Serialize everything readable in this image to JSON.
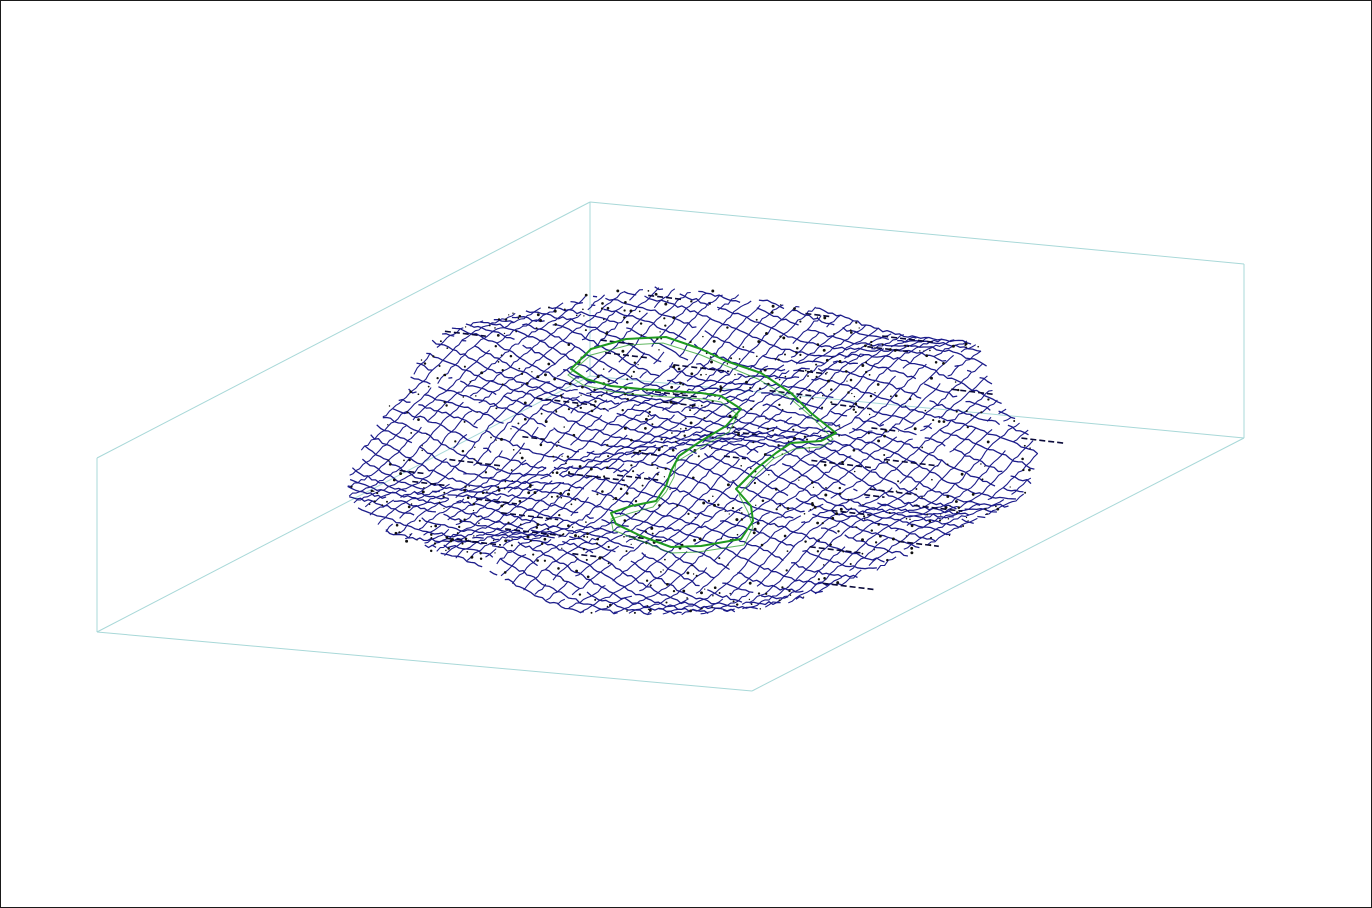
{
  "viewport": {
    "description_label": "",
    "background_color": "#ffffff",
    "border_color": "#1a1a1a"
  },
  "scene": {
    "view": "3d-perspective-wireframe",
    "bounding_box_color": "#a8d8d8",
    "mesh_color": "#1c1c8a",
    "mesh_dark_color": "#0a0a3a",
    "point_color": "#111111",
    "outline_color": "#1f9a1f",
    "grid_rows": 34,
    "grid_cols": 46
  }
}
